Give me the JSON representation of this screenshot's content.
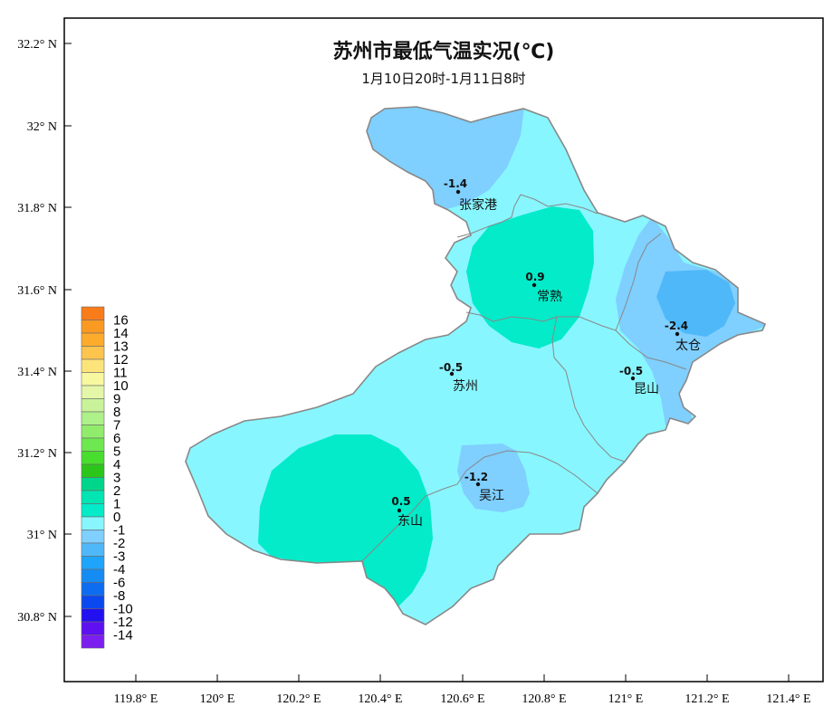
{
  "title": "苏州市最低气温实况(℃)",
  "subtitle": "1月10日20时-1月11日8时",
  "axes": {
    "x_ticks": [
      "119.8° E",
      "120° E",
      "120.2° E",
      "120.4° E",
      "120.6° E",
      "120.8° E",
      "121° E",
      "121.2° E",
      "121.4° E"
    ],
    "y_ticks": [
      "32.2° N",
      "32° N",
      "31.8° N",
      "31.6° N",
      "31.4° N",
      "31.2° N",
      "31° N",
      "30.8° N"
    ]
  },
  "stations": [
    {
      "name": "张家港",
      "value": "-1.4"
    },
    {
      "name": "常熟",
      "value": "0.9"
    },
    {
      "name": "太仓",
      "value": "-2.4"
    },
    {
      "name": "苏州",
      "value": "-0.5"
    },
    {
      "name": "昆山",
      "value": "-0.5"
    },
    {
      "name": "吴江",
      "value": "-1.2"
    },
    {
      "name": "东山",
      "value": "0.5"
    }
  ],
  "legend": [
    {
      "label": "16",
      "color": "#f97c1b"
    },
    {
      "label": "14",
      "color": "#fb9a22"
    },
    {
      "label": "13",
      "color": "#fdab2c"
    },
    {
      "label": "12",
      "color": "#fdc54e"
    },
    {
      "label": "11",
      "color": "#fde47a"
    },
    {
      "label": "10",
      "color": "#f8f8a0"
    },
    {
      "label": "9",
      "color": "#e4f7a8"
    },
    {
      "label": "8",
      "color": "#c8f39a"
    },
    {
      "label": "7",
      "color": "#aef08a"
    },
    {
      "label": "6",
      "color": "#92ec6c"
    },
    {
      "label": "5",
      "color": "#6ee850"
    },
    {
      "label": "4",
      "color": "#48de2e"
    },
    {
      "label": "3",
      "color": "#2cc61a"
    },
    {
      "label": "2",
      "color": "#00d68a"
    },
    {
      "label": "1",
      "color": "#00e5b2"
    },
    {
      "label": "0",
      "color": "#03ebc9"
    },
    {
      "label": "-1",
      "color": "#88f6ff"
    },
    {
      "label": "-2",
      "color": "#7fcfff"
    },
    {
      "label": "-3",
      "color": "#4fb8f8"
    },
    {
      "label": "-4",
      "color": "#1ea4fb"
    },
    {
      "label": "-6",
      "color": "#158cf4"
    },
    {
      "label": "-8",
      "color": "#0d6cf0"
    },
    {
      "label": "-10",
      "color": "#0a49ef"
    },
    {
      "label": "-12",
      "color": "#2210f0"
    },
    {
      "label": "-14",
      "color": "#5f10f0"
    },
    {
      "label": "",
      "color": "#7c1ef0"
    }
  ],
  "colors": {
    "zone_0_to_minus1": "#88f6ff",
    "zone_minus1_to_minus2": "#7fcfff",
    "zone_minus2_to_minus3": "#4fb8f8",
    "zone_0_to_1": "#03ebc9",
    "boundary": "#888888"
  }
}
